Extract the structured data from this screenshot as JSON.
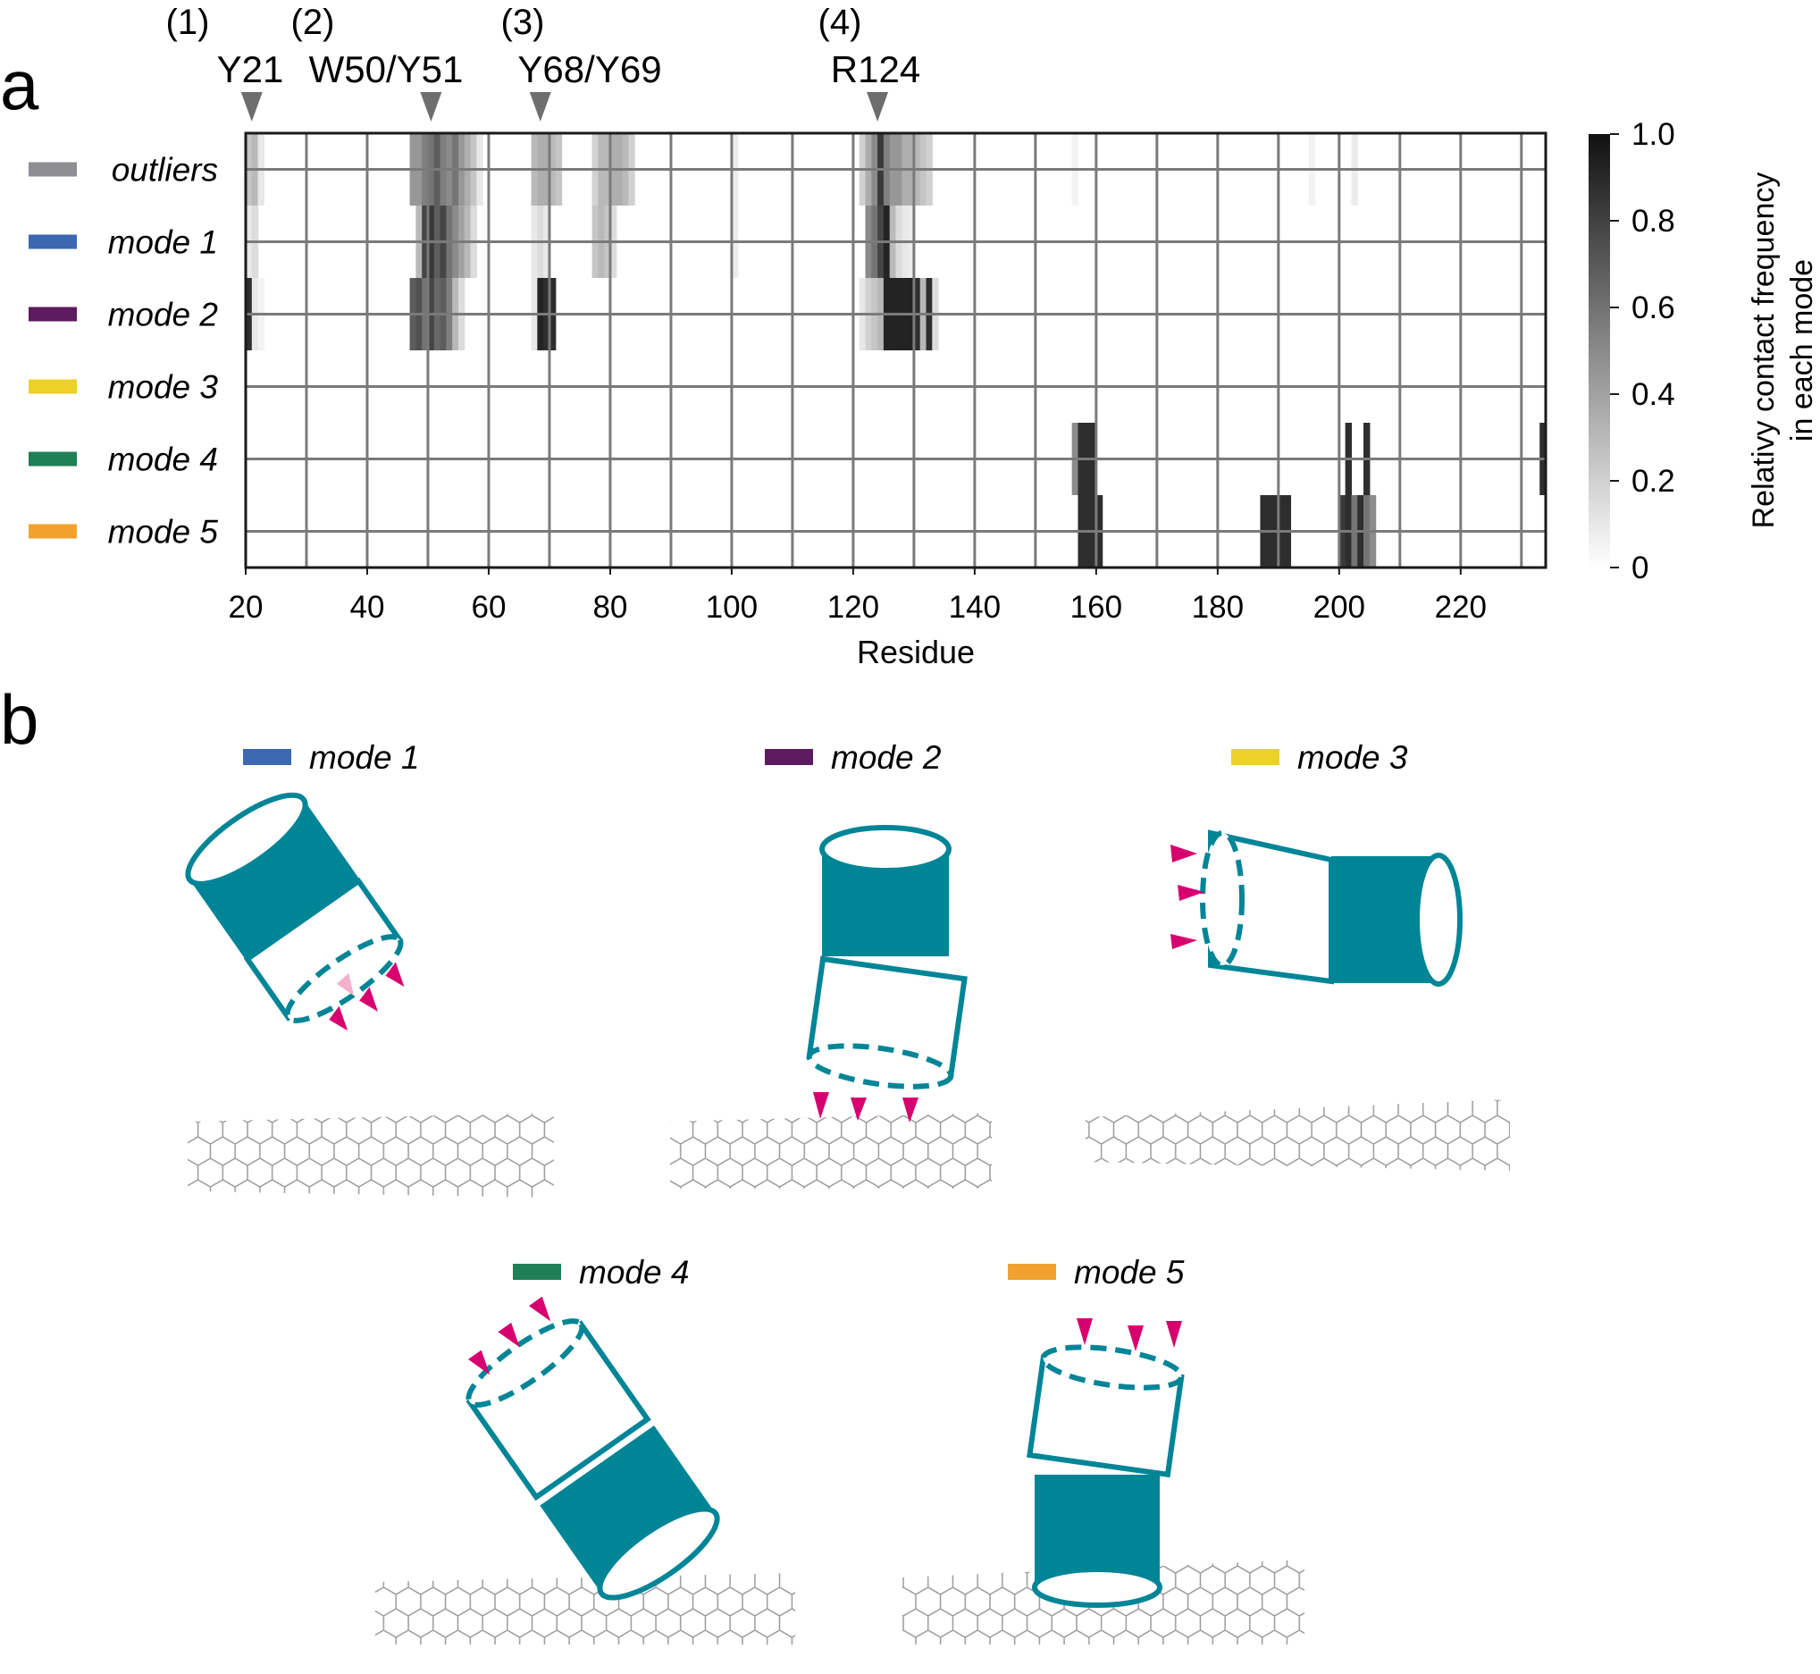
{
  "panels": {
    "a": "a",
    "b": "b"
  },
  "chart_data": {
    "type": "heatmap",
    "title": "",
    "xlabel": "Residue",
    "ylabel": "",
    "xlim": [
      20,
      234
    ],
    "xticks": [
      20,
      40,
      60,
      80,
      100,
      120,
      140,
      160,
      180,
      200,
      220
    ],
    "grid": true,
    "rows": [
      {
        "name": "outliers",
        "color": "#8e8e93"
      },
      {
        "name": "mode 1",
        "color": "#3b68b1"
      },
      {
        "name": "mode 2",
        "color": "#5e1a5e"
      },
      {
        "name": "mode 3",
        "color": "#ecd129"
      },
      {
        "name": "mode 4",
        "color": "#1f7f55"
      },
      {
        "name": "mode 5",
        "color": "#f2a12f"
      }
    ],
    "sites": [
      {
        "num": "(1)",
        "label": "Y21",
        "residue": 21
      },
      {
        "num": "(2)",
        "label": "W50/Y51",
        "residue": 50.5
      },
      {
        "num": "(3)",
        "label": "Y68/Y69",
        "residue": 68.5
      },
      {
        "num": "(4)",
        "label": "R124",
        "residue": 124
      }
    ],
    "colorbar": {
      "label_line1": "Relativy contact frequency",
      "label_line2": "in each mode",
      "min": 0,
      "max": 1,
      "ticks": [
        "0",
        "0.2",
        "0.4",
        "0.6",
        "0.8",
        "1.0"
      ]
    },
    "contacts": [
      [
        [
          20,
          0.25
        ],
        [
          21,
          0.3
        ],
        [
          22,
          0.1
        ],
        [
          47,
          0.45
        ],
        [
          48,
          0.45
        ],
        [
          49,
          0.55
        ],
        [
          50,
          0.6
        ],
        [
          51,
          0.7
        ],
        [
          52,
          0.55
        ],
        [
          53,
          0.5
        ],
        [
          54,
          0.6
        ],
        [
          55,
          0.45
        ],
        [
          56,
          0.35
        ],
        [
          57,
          0.25
        ],
        [
          58,
          0.1
        ],
        [
          67,
          0.3
        ],
        [
          68,
          0.35
        ],
        [
          69,
          0.35
        ],
        [
          70,
          0.3
        ],
        [
          71,
          0.25
        ],
        [
          77,
          0.2
        ],
        [
          78,
          0.3
        ],
        [
          79,
          0.3
        ],
        [
          80,
          0.35
        ],
        [
          81,
          0.35
        ],
        [
          82,
          0.3
        ],
        [
          83,
          0.2
        ],
        [
          100,
          0.08
        ],
        [
          121,
          0.2
        ],
        [
          122,
          0.35
        ],
        [
          123,
          0.5
        ],
        [
          124,
          0.85
        ],
        [
          125,
          0.55
        ],
        [
          126,
          0.45
        ],
        [
          127,
          0.45
        ],
        [
          128,
          0.35
        ],
        [
          129,
          0.35
        ],
        [
          130,
          0.3
        ],
        [
          131,
          0.25
        ],
        [
          132,
          0.2
        ],
        [
          156,
          0.05
        ],
        [
          195,
          0.05
        ],
        [
          202,
          0.08
        ]
      ],
      [
        [
          20,
          0.1
        ],
        [
          21,
          0.15
        ],
        [
          48,
          0.3
        ],
        [
          49,
          0.8
        ],
        [
          50,
          0.85
        ],
        [
          51,
          0.7
        ],
        [
          52,
          0.8
        ],
        [
          53,
          0.6
        ],
        [
          54,
          0.5
        ],
        [
          55,
          0.4
        ],
        [
          56,
          0.3
        ],
        [
          57,
          0.15
        ],
        [
          67,
          0.1
        ],
        [
          68,
          0.15
        ],
        [
          69,
          0.1
        ],
        [
          77,
          0.25
        ],
        [
          78,
          0.3
        ],
        [
          79,
          0.25
        ],
        [
          80,
          0.15
        ],
        [
          100,
          0.08
        ],
        [
          122,
          0.5
        ],
        [
          123,
          0.6
        ],
        [
          124,
          0.8
        ],
        [
          125,
          0.95
        ],
        [
          126,
          0.3
        ],
        [
          127,
          0.15
        ],
        [
          128,
          0.1
        ],
        [
          129,
          0.08
        ]
      ],
      [
        [
          20,
          0.9
        ],
        [
          21,
          0.1
        ],
        [
          22,
          0.05
        ],
        [
          47,
          0.7
        ],
        [
          48,
          0.75
        ],
        [
          49,
          0.6
        ],
        [
          50,
          0.8
        ],
        [
          51,
          0.65
        ],
        [
          52,
          0.7
        ],
        [
          53,
          0.55
        ],
        [
          54,
          0.3
        ],
        [
          55,
          0.15
        ],
        [
          67,
          0.1
        ],
        [
          68,
          0.95
        ],
        [
          69,
          0.9
        ],
        [
          70,
          0.9
        ],
        [
          121,
          0.1
        ],
        [
          122,
          0.2
        ],
        [
          123,
          0.25
        ],
        [
          124,
          0.3
        ],
        [
          125,
          0.95
        ],
        [
          126,
          0.95
        ],
        [
          127,
          0.95
        ],
        [
          128,
          0.95
        ],
        [
          129,
          0.95
        ],
        [
          130,
          0.9
        ],
        [
          131,
          0.3
        ],
        [
          132,
          0.9
        ],
        [
          133,
          0.15
        ]
      ],
      [],
      [
        [
          156,
          0.5
        ],
        [
          157,
          0.9
        ],
        [
          158,
          0.9
        ],
        [
          159,
          0.9
        ],
        [
          201,
          0.9
        ],
        [
          204,
          0.9
        ],
        [
          233,
          0.9
        ]
      ],
      [
        [
          157,
          0.9
        ],
        [
          158,
          0.9
        ],
        [
          159,
          0.9
        ],
        [
          160,
          0.9
        ],
        [
          187,
          0.9
        ],
        [
          188,
          0.9
        ],
        [
          189,
          0.9
        ],
        [
          190,
          0.9
        ],
        [
          191,
          0.9
        ],
        [
          200,
          0.85
        ],
        [
          201,
          0.9
        ],
        [
          202,
          0.6
        ],
        [
          203,
          0.9
        ],
        [
          204,
          0.6
        ],
        [
          205,
          0.5
        ]
      ]
    ]
  },
  "illustrations": [
    {
      "label": "mode 1",
      "color": "#3b68b1"
    },
    {
      "label": "mode 2",
      "color": "#5e1a5e"
    },
    {
      "label": "mode 3",
      "color": "#ecd129"
    },
    {
      "label": "mode 4",
      "color": "#1f7f55"
    },
    {
      "label": "mode 5",
      "color": "#f2a12f"
    }
  ],
  "colors": {
    "protein": "#008597",
    "contact": "#d6006f",
    "contact_light": "#f3b1cc",
    "graphene": "#9a9a9a",
    "grid": "#7a7a7a"
  }
}
